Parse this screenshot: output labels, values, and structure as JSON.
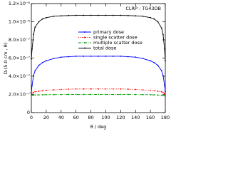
{
  "chart_data": {
    "type": "line",
    "annotation": "CLRP : TG43DB",
    "x_label": "θ / deg",
    "y_label": "Dₜ(5.0 cm , θ)",
    "x": [
      0,
      1,
      3,
      5,
      10,
      15,
      20,
      30,
      40,
      50,
      60,
      70,
      80,
      90,
      100,
      110,
      120,
      130,
      140,
      150,
      160,
      165,
      170,
      175,
      177,
      179,
      180
    ],
    "series": [
      {
        "name": "primary dose",
        "color": "#0000ff",
        "style": "solid",
        "values": [
          2.2e-07,
          3e-07,
          4.1e-07,
          4.6e-07,
          5.2e-07,
          5.5e-07,
          5.7e-07,
          5.95e-07,
          6.1e-07,
          6.15e-07,
          6.2e-07,
          6.2e-07,
          6.2e-07,
          6.2e-07,
          6.2e-07,
          6.2e-07,
          6.2e-07,
          6.15e-07,
          6.1e-07,
          5.95e-07,
          5.7e-07,
          5.5e-07,
          5.2e-07,
          4.6e-07,
          4.1e-07,
          3e-07,
          2.3e-07
        ]
      },
      {
        "name": "single scatter dose",
        "color": "#ff0000",
        "style": "dotted",
        "values": [
          2.1e-07,
          2.15e-07,
          2.2e-07,
          2.3e-07,
          2.35e-07,
          2.4e-07,
          2.45e-07,
          2.5e-07,
          2.55e-07,
          2.58e-07,
          2.6e-07,
          2.6e-07,
          2.6e-07,
          2.6e-07,
          2.6e-07,
          2.6e-07,
          2.6e-07,
          2.58e-07,
          2.55e-07,
          2.5e-07,
          2.45e-07,
          2.4e-07,
          2.35e-07,
          2.3e-07,
          2.2e-07,
          2.1e-07,
          2e-07
        ]
      },
      {
        "name": "multiple scatter dose",
        "color": "#009900",
        "style": "dashdot",
        "values": [
          1.9e-07,
          1.9e-07,
          1.92e-07,
          1.93e-07,
          1.95e-07,
          1.96e-07,
          1.97e-07,
          1.98e-07,
          1.99e-07,
          2e-07,
          2e-07,
          2e-07,
          2e-07,
          2e-07,
          2e-07,
          2e-07,
          2e-07,
          2e-07,
          1.99e-07,
          1.98e-07,
          1.97e-07,
          1.95e-07,
          1.93e-07,
          1.9e-07,
          1.88e-07,
          1.85e-07,
          1.8e-07
        ]
      },
      {
        "name": "total dose",
        "color": "#000000",
        "style": "solid",
        "values": [
          5.9e-07,
          7e-07,
          8.6e-07,
          9.4e-07,
          1e-06,
          1.03e-06,
          1.045e-06,
          1.06e-06,
          1.065e-06,
          1.068e-06,
          1.07e-06,
          1.07e-06,
          1.07e-06,
          1.07e-06,
          1.07e-06,
          1.07e-06,
          1.07e-06,
          1.068e-06,
          1.065e-06,
          1.06e-06,
          1.045e-06,
          1.03e-06,
          1e-06,
          9.3e-07,
          8.6e-07,
          7e-07,
          5.7e-07
        ]
      }
    ],
    "xlim": [
      0,
      180
    ],
    "xticks": [
      0,
      20,
      40,
      60,
      80,
      100,
      120,
      140,
      160,
      180
    ],
    "ylim": [
      0,
      1.2e-06
    ],
    "yticks": [
      0,
      {
        "value": 2e-07,
        "label": "2.0×10⁻⁷"
      },
      {
        "value": 4e-07,
        "label": "4.0×10⁻⁷"
      },
      {
        "value": 6e-07,
        "label": "6.0×10⁻⁷"
      },
      {
        "value": 8e-07,
        "label": "8.0×10⁻⁷"
      },
      {
        "value": 1e-06,
        "label": "1.0×10⁻⁶"
      },
      {
        "value": 1.2e-06,
        "label": "1.2×10⁻⁶"
      }
    ]
  }
}
